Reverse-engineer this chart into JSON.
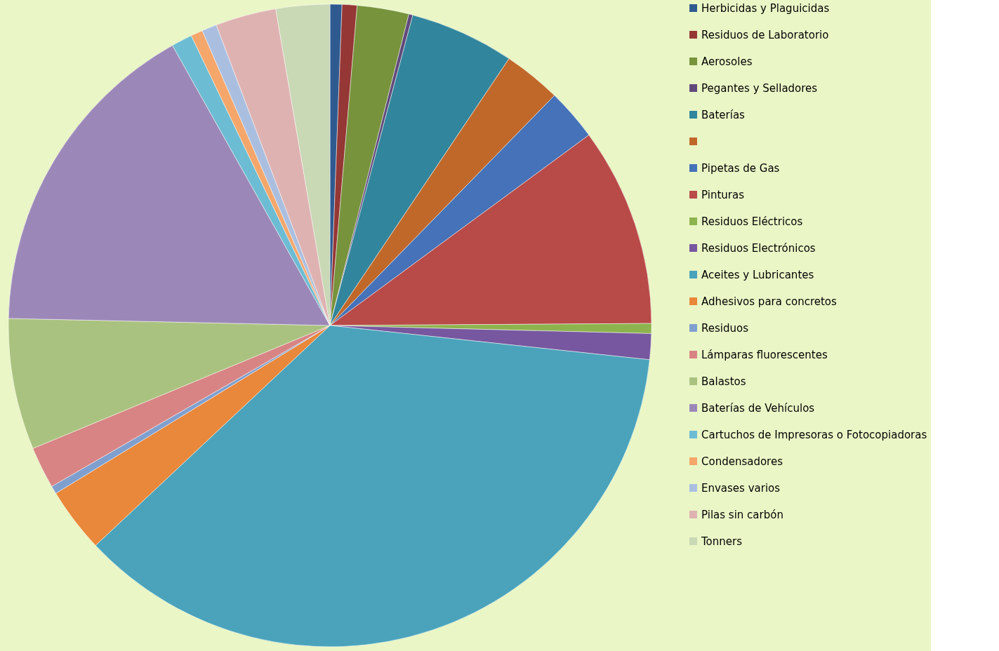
{
  "chart_data": {
    "type": "pie",
    "categories": [
      "Herbicidas y Plaguicidas",
      "Residuos de Laboratorio",
      "Aerosoles",
      "Pegantes y Selladores",
      "Baterías",
      null,
      "Pipetas de Gas",
      "Pinturas",
      "Residuos Eléctricos",
      "Residuos Electrónicos",
      "Aceites y Lubricantes",
      "Adhesivos para concretos",
      "Residuos",
      "Lámparas fluorescentes",
      "Balastos",
      "Baterías de Vehículos",
      "Cartuchos de Impresoras o Fotocopiadoras",
      "Condensadores",
      "Envases varios",
      "Pilas sin carbón",
      "Tonners"
    ],
    "values": [
      0.6,
      0.75,
      2.6,
      0.2,
      5.25,
      2.9,
      2.6,
      10.0,
      0.5,
      1.3,
      36.3,
      3.25,
      0.4,
      2.1,
      6.6,
      16.5,
      1.05,
      0.6,
      0.75,
      3.05,
      2.7
    ],
    "colors": [
      "#2f5a8f",
      "#953735",
      "#77933c",
      "#604a7b",
      "#31859c",
      "#c0682a",
      "#4572b8",
      "#b84a48",
      "#8db34e",
      "#7757a0",
      "#4aa3bb",
      "#e9873a",
      "#7f9fcf",
      "#d88484",
      "#aac27f",
      "#9c88b8",
      "#6cbcd3",
      "#f5a66b",
      "#aabfe0",
      "#dfb2b2",
      "#c9d8b5"
    ],
    "legend": "right"
  }
}
